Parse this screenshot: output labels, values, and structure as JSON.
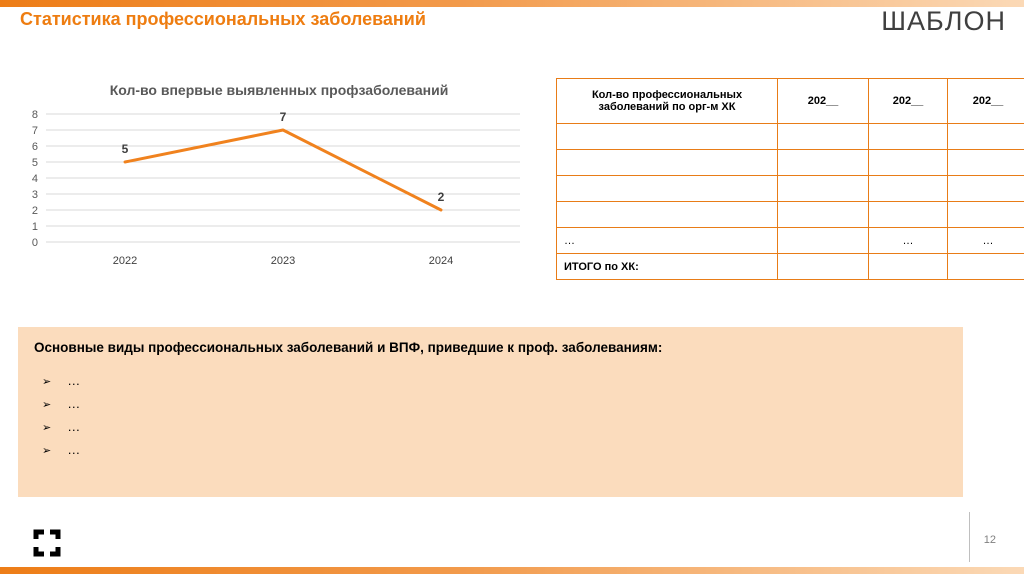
{
  "page": {
    "title": "Статистика профессиональных заболеваний",
    "watermark": "ШАБЛОН",
    "page_number": "12"
  },
  "chart_data": {
    "type": "line",
    "title": "Кол-во впервые выявленных профзаболеваний",
    "categories": [
      "2022",
      "2023",
      "2024"
    ],
    "values": [
      5,
      7,
      2
    ],
    "ylim": [
      0,
      8
    ],
    "yticks": [
      8,
      7,
      6,
      5,
      4,
      3,
      2,
      1,
      0
    ],
    "grid": true,
    "legend": "none",
    "line_color": "#F0821E"
  },
  "table": {
    "header": [
      "Кол-во профессиональных заболеваний по орг-м ХК",
      "202__",
      "202__",
      "202__"
    ],
    "rows": [
      [
        "",
        "",
        "",
        ""
      ],
      [
        "",
        "",
        "",
        ""
      ],
      [
        "",
        "",
        "",
        ""
      ],
      [
        "",
        "",
        "",
        ""
      ],
      [
        "…",
        "",
        "…",
        "…"
      ],
      [
        "ИТОГО по ХК:",
        "",
        "",
        ""
      ]
    ]
  },
  "info_box": {
    "title": "Основные виды профессиональных заболеваний и ВПФ, приведшие к проф. заболеваниям:",
    "bullet": "➢",
    "items": [
      "…",
      "…",
      "…",
      "…"
    ]
  },
  "colors": {
    "accent": "#EE7D11",
    "table_border": "#E87C17",
    "box_fill": "#FBDCBD",
    "grid_line": "#D9D9D9"
  }
}
